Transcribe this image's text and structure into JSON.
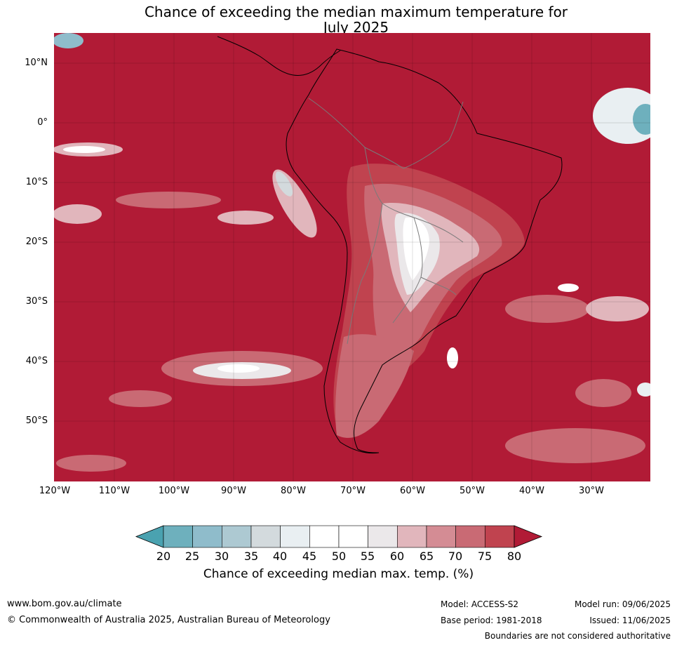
{
  "header": {
    "title_line1": "Chance of exceeding the median maximum temperature for",
    "title_line2": "July 2025"
  },
  "map": {
    "lat_labels": [
      "10°N",
      "0°",
      "10°S",
      "20°S",
      "30°S",
      "40°S",
      "50°S"
    ],
    "lon_labels": [
      "120°W",
      "110°W",
      "100°W",
      "90°W",
      "80°W",
      "70°W",
      "60°W",
      "50°W",
      "40°W",
      "30°W"
    ],
    "background_color": "#b11b36"
  },
  "colorbar": {
    "ticks": [
      "20",
      "25",
      "30",
      "35",
      "40",
      "45",
      "50",
      "55",
      "60",
      "65",
      "70",
      "75",
      "80"
    ],
    "colors": [
      "#4aa2b0",
      "#6eb0bd",
      "#8fbccb",
      "#adc9d2",
      "#d3dadd",
      "#e9eff2",
      "#ffffff",
      "#ffffff",
      "#ebe8ea",
      "#e1b6bc",
      "#d48c94",
      "#c96a74",
      "#c0434f",
      "#b11b36"
    ],
    "label": "Chance of exceeding median max. temp. (%)"
  },
  "footer": {
    "website": "www.bom.gov.au/climate",
    "copyright": "© Commonwealth of Australia 2025, Australian Bureau of Meteorology",
    "model": "Model: ACCESS-S2",
    "base_period": "Base period: 1981-2018",
    "model_run": "Model run: 09/06/2025",
    "issued": "Issued: 11/06/2025",
    "disclaimer": "Boundaries are not considered authoritative"
  }
}
